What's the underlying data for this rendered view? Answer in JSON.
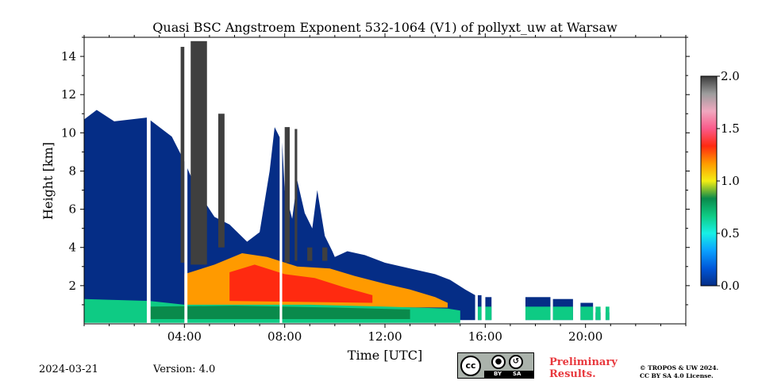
{
  "chart_data": {
    "type": "heatmap",
    "title": "Quasi BSC Angstroem Exponent 532-1064 (V1) of pollyxt_uw at Warsaw",
    "xlabel": "Time [UTC]",
    "ylabel": "Height [km]",
    "xlim_hours": [
      0,
      24
    ],
    "ylim_km": [
      0,
      15
    ],
    "xticks": [
      {
        "hour": 4,
        "label": "04:00"
      },
      {
        "hour": 8,
        "label": "08:00"
      },
      {
        "hour": 12,
        "label": "12:00"
      },
      {
        "hour": 16,
        "label": "16:00"
      },
      {
        "hour": 20,
        "label": "20:00"
      }
    ],
    "yticks": [
      {
        "km": 2,
        "label": "2"
      },
      {
        "km": 4,
        "label": "4"
      },
      {
        "km": 6,
        "label": "6"
      },
      {
        "km": 8,
        "label": "8"
      },
      {
        "km": 10,
        "label": "10"
      },
      {
        "km": 12,
        "label": "12"
      },
      {
        "km": 14,
        "label": "14"
      }
    ],
    "colorbar": {
      "range": [
        0.0,
        2.0
      ],
      "ticks": [
        {
          "value": 0.0,
          "label": "0.0"
        },
        {
          "value": 0.5,
          "label": "0.5"
        },
        {
          "value": 1.0,
          "label": "1.0"
        },
        {
          "value": 1.5,
          "label": "1.5"
        },
        {
          "value": 2.0,
          "label": "2.0"
        }
      ],
      "stops": [
        "#052d86",
        "#0057d8",
        "#0aa0ff",
        "#18f0e6",
        "#0ecb84",
        "#0a8a4b",
        "#f3ee14",
        "#ff9a00",
        "#ff2a10",
        "#fa5a8a",
        "#f0a8bf",
        "#9c9c9c",
        "#3a3a3a"
      ]
    },
    "regions": [
      {
        "name": "upper-aerosol-layer",
        "value": 0.0,
        "color": "#052d86",
        "polygon": [
          [
            0,
            10.7
          ],
          [
            0.5,
            11.2
          ],
          [
            1.2,
            10.6
          ],
          [
            2.5,
            10.8
          ],
          [
            3.5,
            9.8
          ],
          [
            4.0,
            8.5
          ],
          [
            4.5,
            7.0
          ],
          [
            5.2,
            5.6
          ],
          [
            5.8,
            5.2
          ],
          [
            6.5,
            4.3
          ],
          [
            7.0,
            4.8
          ],
          [
            7.4,
            8.0
          ],
          [
            7.6,
            10.3
          ],
          [
            7.9,
            9.5
          ],
          [
            8.0,
            7.0
          ],
          [
            8.3,
            5.5
          ],
          [
            8.5,
            7.5
          ],
          [
            8.8,
            5.8
          ],
          [
            9.1,
            5.0
          ],
          [
            9.3,
            7.0
          ],
          [
            9.6,
            4.6
          ],
          [
            9.9,
            3.8
          ],
          [
            10.0,
            3.5
          ],
          [
            10.5,
            3.8
          ],
          [
            11.2,
            3.6
          ],
          [
            12.0,
            3.2
          ],
          [
            13.0,
            2.9
          ],
          [
            14.0,
            2.6
          ],
          [
            14.6,
            2.3
          ],
          [
            15.2,
            1.8
          ],
          [
            15.6,
            1.5
          ],
          [
            15.6,
            0.2
          ],
          [
            0,
            0.2
          ]
        ]
      },
      {
        "name": "mixed-layer-high-ae",
        "value": 1.2,
        "color": "#ff9a00",
        "polygon": [
          [
            4.0,
            2.6
          ],
          [
            5.2,
            3.1
          ],
          [
            6.3,
            3.7
          ],
          [
            7.3,
            3.5
          ],
          [
            8.5,
            3.0
          ],
          [
            9.8,
            2.9
          ],
          [
            10.8,
            2.5
          ],
          [
            12.0,
            2.1
          ],
          [
            13.0,
            1.8
          ],
          [
            14.0,
            1.4
          ],
          [
            14.5,
            1.1
          ],
          [
            14.5,
            0.85
          ],
          [
            4.0,
            0.9
          ]
        ]
      },
      {
        "name": "mixed-layer-core",
        "value": 1.4,
        "color": "#ff2a10",
        "polygon": [
          [
            5.8,
            2.7
          ],
          [
            6.8,
            3.1
          ],
          [
            8.0,
            2.6
          ],
          [
            9.2,
            2.4
          ],
          [
            10.4,
            1.9
          ],
          [
            11.5,
            1.5
          ],
          [
            11.5,
            1.1
          ],
          [
            5.8,
            1.2
          ]
        ]
      },
      {
        "name": "surface-layer",
        "value": 0.6,
        "color": "#0ecb84",
        "polygon": [
          [
            0,
            1.3
          ],
          [
            2.6,
            1.2
          ],
          [
            4.0,
            1.0
          ],
          [
            6.0,
            1.0
          ],
          [
            9.0,
            1.0
          ],
          [
            12.0,
            0.9
          ],
          [
            14.5,
            0.8
          ],
          [
            15.0,
            0.7
          ],
          [
            15.0,
            0.05
          ],
          [
            0,
            0.05
          ]
        ]
      },
      {
        "name": "surface-band",
        "value": 0.8,
        "color": "#0a8a4b",
        "polygon": [
          [
            2.6,
            0.9
          ],
          [
            6.0,
            0.95
          ],
          [
            10.0,
            0.85
          ],
          [
            13.0,
            0.75
          ],
          [
            13.0,
            0.25
          ],
          [
            2.6,
            0.25
          ]
        ]
      }
    ],
    "high_ae_columns": [
      {
        "name": "column-1",
        "start_hour": 3.85,
        "end_hour": 4.0,
        "bottom_km": 3.2,
        "top_km": 14.5,
        "value": 2.0
      },
      {
        "name": "column-2",
        "start_hour": 4.25,
        "end_hour": 4.9,
        "bottom_km": 3.1,
        "top_km": 14.8,
        "value": 2.0
      },
      {
        "name": "column-3",
        "start_hour": 5.35,
        "end_hour": 5.6,
        "bottom_km": 4.0,
        "top_km": 11.0,
        "value": 2.0
      },
      {
        "name": "column-4",
        "start_hour": 8.0,
        "end_hour": 8.2,
        "bottom_km": 3.2,
        "top_km": 10.3,
        "value": 2.0
      },
      {
        "name": "column-5",
        "start_hour": 8.4,
        "end_hour": 8.5,
        "bottom_km": 3.3,
        "top_km": 10.2,
        "value": 2.0
      },
      {
        "name": "column-6",
        "start_hour": 8.9,
        "end_hour": 9.1,
        "bottom_km": 3.3,
        "top_km": 4.0,
        "value": 2.0
      },
      {
        "name": "column-7",
        "start_hour": 9.5,
        "end_hour": 9.7,
        "bottom_km": 3.3,
        "top_km": 4.0,
        "value": 2.0
      }
    ],
    "data_gaps": [
      {
        "start_hour": 2.5,
        "end_hour": 2.65
      },
      {
        "start_hour": 4.0,
        "end_hour": 4.12
      },
      {
        "start_hour": 7.8,
        "end_hour": 7.9
      },
      {
        "start_hour": 15.6,
        "end_hour": 15.7
      },
      {
        "start_hour": 15.9,
        "end_hour": 16.0
      },
      {
        "start_hour": 16.3,
        "end_hour": 17.6
      }
    ],
    "late_segments": [
      {
        "start_hour": 15.7,
        "end_hour": 15.85,
        "top_km": 1.5
      },
      {
        "start_hour": 16.0,
        "end_hour": 16.25,
        "top_km": 1.4
      },
      {
        "start_hour": 17.6,
        "end_hour": 18.6,
        "top_km": 1.4
      },
      {
        "start_hour": 18.7,
        "end_hour": 19.5,
        "top_km": 1.3
      },
      {
        "start_hour": 19.8,
        "end_hour": 20.3,
        "top_km": 1.1
      },
      {
        "start_hour": 20.4,
        "end_hour": 20.6,
        "top_km": 0.6
      },
      {
        "start_hour": 20.8,
        "end_hour": 20.95,
        "top_km": 0.6
      }
    ]
  },
  "footer": {
    "date": "2024-03-21",
    "version": "Version: 4.0",
    "preliminary_line1": "Preliminary",
    "preliminary_line2": "Results.",
    "copyright_line1": "© TROPOS & UW 2024.",
    "copyright_line2": "CC BY SA 4.0 License.",
    "license_badge": {
      "cc": "cc",
      "by": "BY",
      "sa": "SA"
    }
  }
}
